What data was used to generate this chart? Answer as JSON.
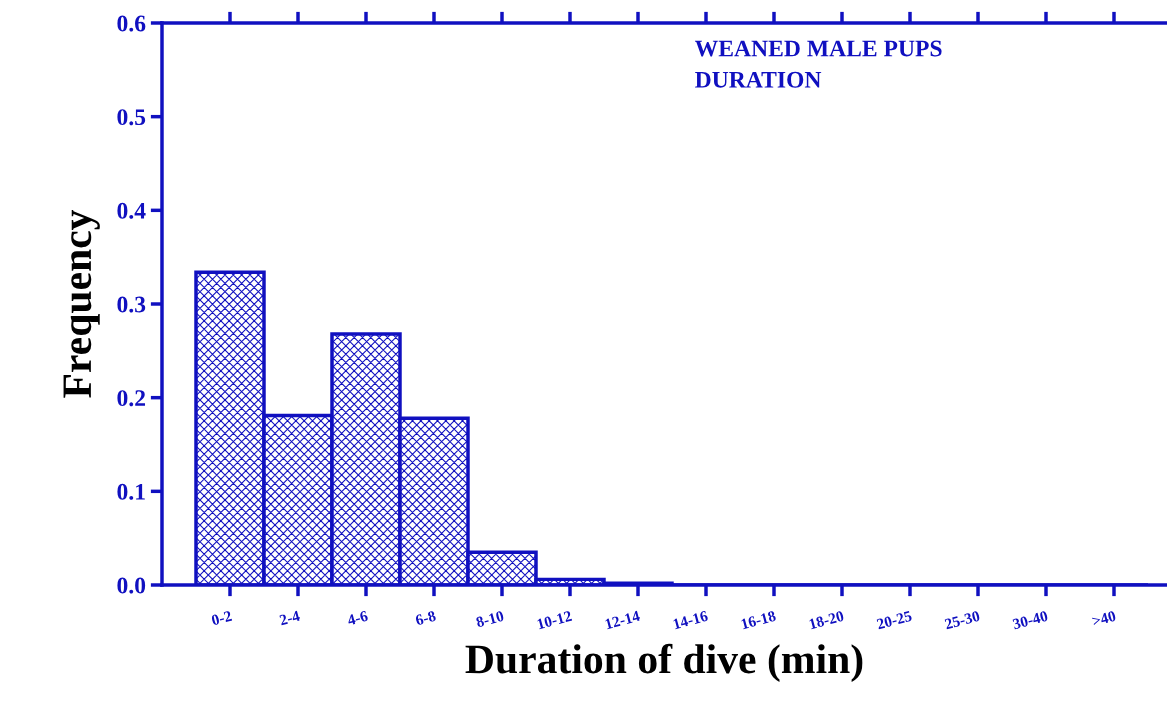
{
  "chart_data": {
    "type": "bar",
    "title": "WEANED MALE PUPS\nDURATION",
    "xlabel": "Duration of dive (min)",
    "ylabel": "Frequency",
    "categories": [
      "0-2",
      "2-4",
      "4-6",
      "6-8",
      "8-10",
      "10-12",
      "12-14",
      "14-16",
      "16-18",
      "18-20",
      "20-25",
      "25-30",
      "30-40",
      ">40"
    ],
    "values": [
      0.334,
      0.181,
      0.268,
      0.178,
      0.035,
      0.006,
      0.002,
      0,
      0,
      0,
      0,
      0,
      0,
      0
    ],
    "color": "#1010c0",
    "ylim": [
      0,
      0.6
    ],
    "yticks": [
      {
        "value": 0,
        "label": "0.0"
      },
      0.1,
      0.2,
      0.3,
      0.4,
      0.5,
      0.6
    ],
    "grid": false,
    "legend": false
  }
}
